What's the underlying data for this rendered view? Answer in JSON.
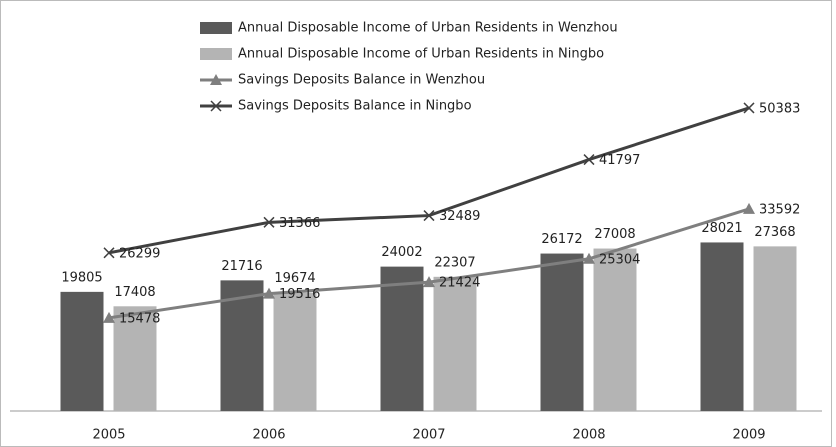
{
  "chart_data": {
    "type": "bar_line",
    "categories": [
      "2005",
      "2006",
      "2007",
      "2008",
      "2009"
    ],
    "series": [
      {
        "name": "Annual Disposable Income of Urban Residents in Wenzhou",
        "kind": "bar",
        "color": "#5a5a5a",
        "values": [
          19805,
          21716,
          24002,
          26172,
          28021
        ]
      },
      {
        "name": "Annual Disposable Income of Urban Residents in Ningbo",
        "kind": "bar",
        "color": "#b4b4b4",
        "values": [
          17408,
          19674,
          22307,
          27008,
          27368
        ]
      },
      {
        "name": "Savings Deposits Balance in Wenzhou",
        "kind": "line",
        "marker": "triangle",
        "color": "#7f7f7f",
        "values": [
          15478,
          19516,
          21424,
          25304,
          33592
        ]
      },
      {
        "name": "Savings Deposits Balance in Ningbo",
        "kind": "line",
        "marker": "x",
        "color": "#404040",
        "values": [
          26299,
          31366,
          32489,
          41797,
          50383
        ]
      }
    ],
    "ylim": [
      0,
      65000
    ]
  }
}
